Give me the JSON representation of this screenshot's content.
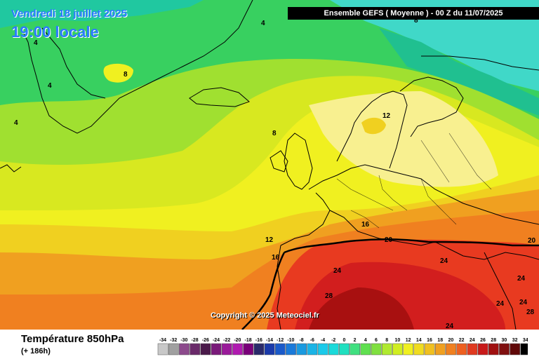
{
  "header": {
    "date_label": "Vendredi 18 juillet 2025",
    "time_label": "19:00 locale",
    "run_label": "Ensemble GEFS  ( Moyenne )  -  00 Z du 11/07/2025"
  },
  "map": {
    "copyright": "Copyright © 2025 Meteociel.fr",
    "contour_labels": [
      {
        "text": "4"
      },
      {
        "text": "4"
      },
      {
        "text": "4"
      },
      {
        "text": "4"
      },
      {
        "text": "8"
      },
      {
        "text": "8"
      },
      {
        "text": "8"
      },
      {
        "text": "12"
      },
      {
        "text": "12"
      },
      {
        "text": "16"
      },
      {
        "text": "16"
      },
      {
        "text": "20"
      },
      {
        "text": "20"
      },
      {
        "text": "24"
      },
      {
        "text": "24"
      },
      {
        "text": "24"
      },
      {
        "text": "24"
      },
      {
        "text": "24"
      },
      {
        "text": "24"
      },
      {
        "text": "28"
      },
      {
        "text": "28"
      }
    ]
  },
  "footer": {
    "parameter": "Température 850hPa",
    "lead_time": "(+ 186h)"
  },
  "legend": {
    "labels": [
      "-34",
      "-32",
      "-30",
      "-28",
      "-26",
      "-24",
      "-22",
      "-20",
      "-18",
      "-16",
      "-14",
      "-12",
      "-10",
      "-8",
      "-6",
      "-4",
      "-2",
      "0",
      "2",
      "4",
      "6",
      "8",
      "10",
      "12",
      "14",
      "16",
      "18",
      "20",
      "22",
      "24",
      "26",
      "28",
      "30",
      "32",
      "34"
    ],
    "colors": [
      "#c8c8c8",
      "#a0a0a0",
      "#8c4a8c",
      "#6a2a6a",
      "#4a1a4a",
      "#7a1a7a",
      "#9a1a9a",
      "#b01ab0",
      "#7a007a",
      "#2a2a6a",
      "#1a3aaa",
      "#1a5aca",
      "#1a7ada",
      "#1a9ae0",
      "#1ab4e6",
      "#1acaea",
      "#1adada",
      "#20e0c0",
      "#40e080",
      "#60e050",
      "#80e040",
      "#b0ea30",
      "#d0ee20",
      "#f0f020",
      "#f0dc20",
      "#f0c020",
      "#f0a020",
      "#f08020",
      "#ee6020",
      "#e03a20",
      "#c81a1a",
      "#a01010",
      "#801010",
      "#600808",
      "#000000"
    ]
  }
}
